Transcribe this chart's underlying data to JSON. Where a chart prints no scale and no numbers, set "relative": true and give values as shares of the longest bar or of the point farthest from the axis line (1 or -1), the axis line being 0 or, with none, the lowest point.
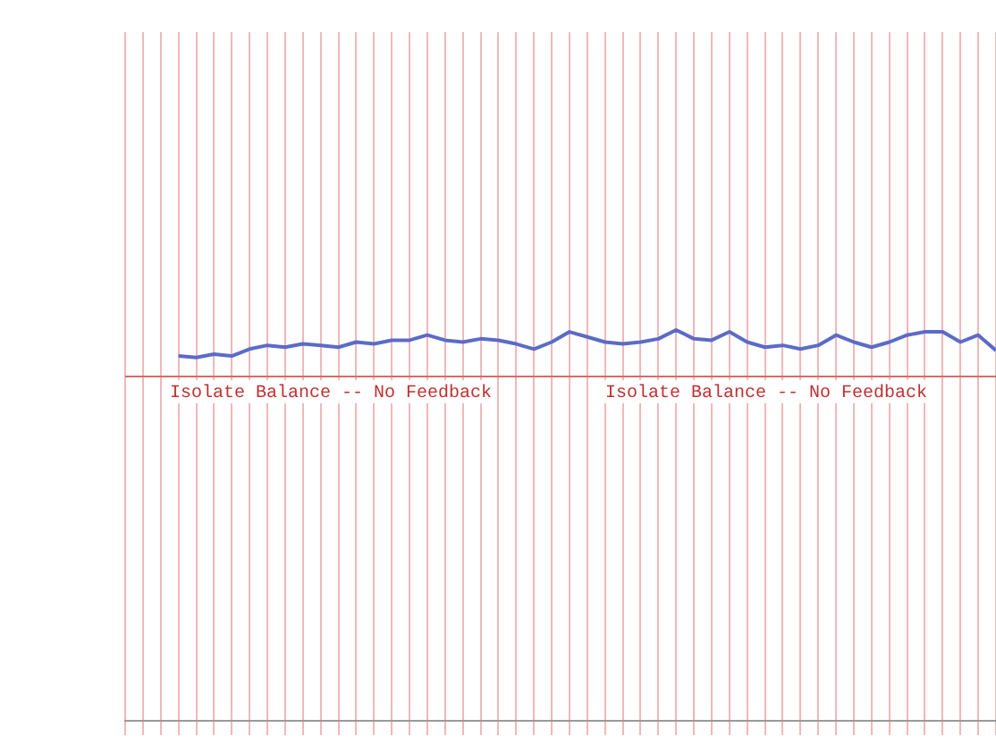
{
  "chart_data": {
    "type": "line",
    "relative": true,
    "color": "#5b6bc8",
    "grid": "x",
    "legend": false,
    "marker": "none",
    "line_style": "solid",
    "categories": [
      null,
      null,
      null,
      null,
      null,
      null,
      null,
      null,
      null,
      null,
      null,
      null,
      null,
      null,
      null,
      null,
      null,
      null,
      null,
      null,
      null,
      null,
      null,
      null,
      null,
      null,
      null,
      null,
      null,
      null,
      null,
      null,
      null,
      null,
      null,
      null,
      null,
      null,
      null,
      null,
      null,
      null,
      null,
      null,
      null,
      null,
      null,
      null,
      null,
      null
    ],
    "values": [
      null,
      null,
      null,
      0.44,
      0.41,
      0.48,
      0.44,
      0.59,
      0.67,
      0.63,
      0.7,
      0.67,
      0.63,
      0.74,
      0.7,
      0.78,
      0.78,
      0.89,
      0.78,
      0.74,
      0.81,
      0.78,
      0.7,
      0.59,
      0.74,
      0.96,
      0.85,
      0.74,
      0.7,
      0.74,
      0.81,
      1,
      0.81,
      0.78,
      0.96,
      0.74,
      0.63,
      0.67,
      0.59,
      0.67,
      0.89,
      0.74,
      0.63,
      0.74,
      0.89,
      0.96,
      0.96,
      0.74,
      0.89,
      0.56
    ],
    "annotations": [
      "Isolate Balance -- No Feedback",
      "Isolate Balance -- No Feedback"
    ]
  }
}
